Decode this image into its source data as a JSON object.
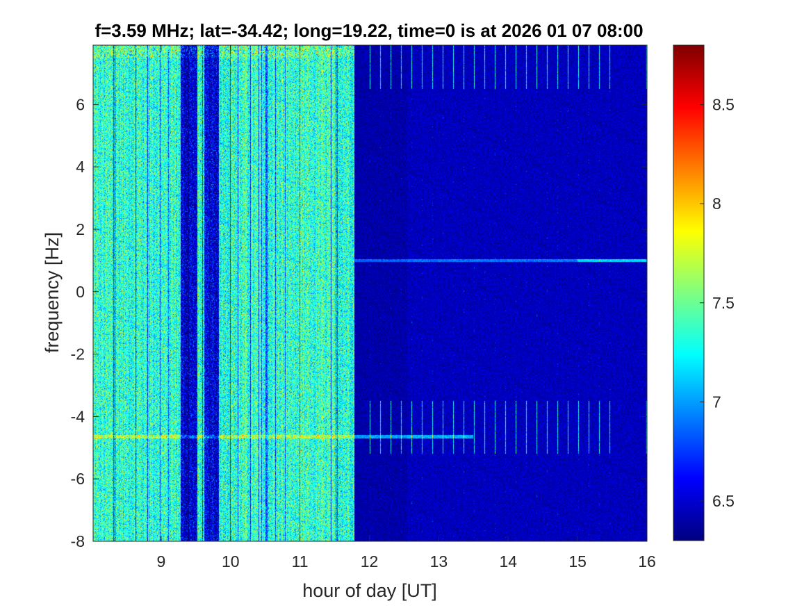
{
  "chart_data": {
    "type": "heatmap",
    "title": "f=3.59 MHz;  lat=-34.42; long=19.22, time=0 is at 2026 01 07 08:00",
    "xlabel": "hour of day [UT]",
    "ylabel": "frequency [Hz]",
    "xlim": [
      8.02,
      16.0
    ],
    "ylim": [
      -8,
      7.9
    ],
    "xticks": [
      9,
      10,
      11,
      12,
      13,
      14,
      15,
      16
    ],
    "xtick_labels": [
      "9",
      "10",
      "11",
      "12",
      "13",
      "14",
      "15",
      "16"
    ],
    "yticks": [
      -8,
      -6,
      -4,
      -2,
      0,
      2,
      4,
      6
    ],
    "ytick_labels": [
      "-8",
      "-6",
      "-4",
      "-2",
      "0",
      "2",
      "4",
      "6"
    ],
    "colormap": "jet",
    "clim": [
      6.3,
      8.8
    ],
    "colorbar_ticks": [
      6.5,
      7,
      7.5,
      8,
      8.5
    ],
    "colorbar_tick_labels": [
      "6.5",
      "7",
      "7.5",
      "8",
      "8.5"
    ],
    "features": {
      "high_noise_period_hours": [
        8.02,
        11.78
      ],
      "high_noise_level": 7.35,
      "low_level_period_hours": [
        11.78,
        16.0
      ],
      "low_level": 6.45,
      "quiet_bands_hours": [
        [
          9.28,
          9.52
        ],
        [
          9.62,
          9.83
        ]
      ],
      "carrier_line_hz": 1.0,
      "carrier_line_hours": [
        11.78,
        16.0
      ],
      "interference_line_hz": -4.65,
      "pulse_train_hours": [
        11.78,
        16.0
      ],
      "pulse_train_hz_ranges": [
        [
          -5.2,
          -3.5
        ],
        [
          6.5,
          7.9
        ]
      ]
    }
  }
}
